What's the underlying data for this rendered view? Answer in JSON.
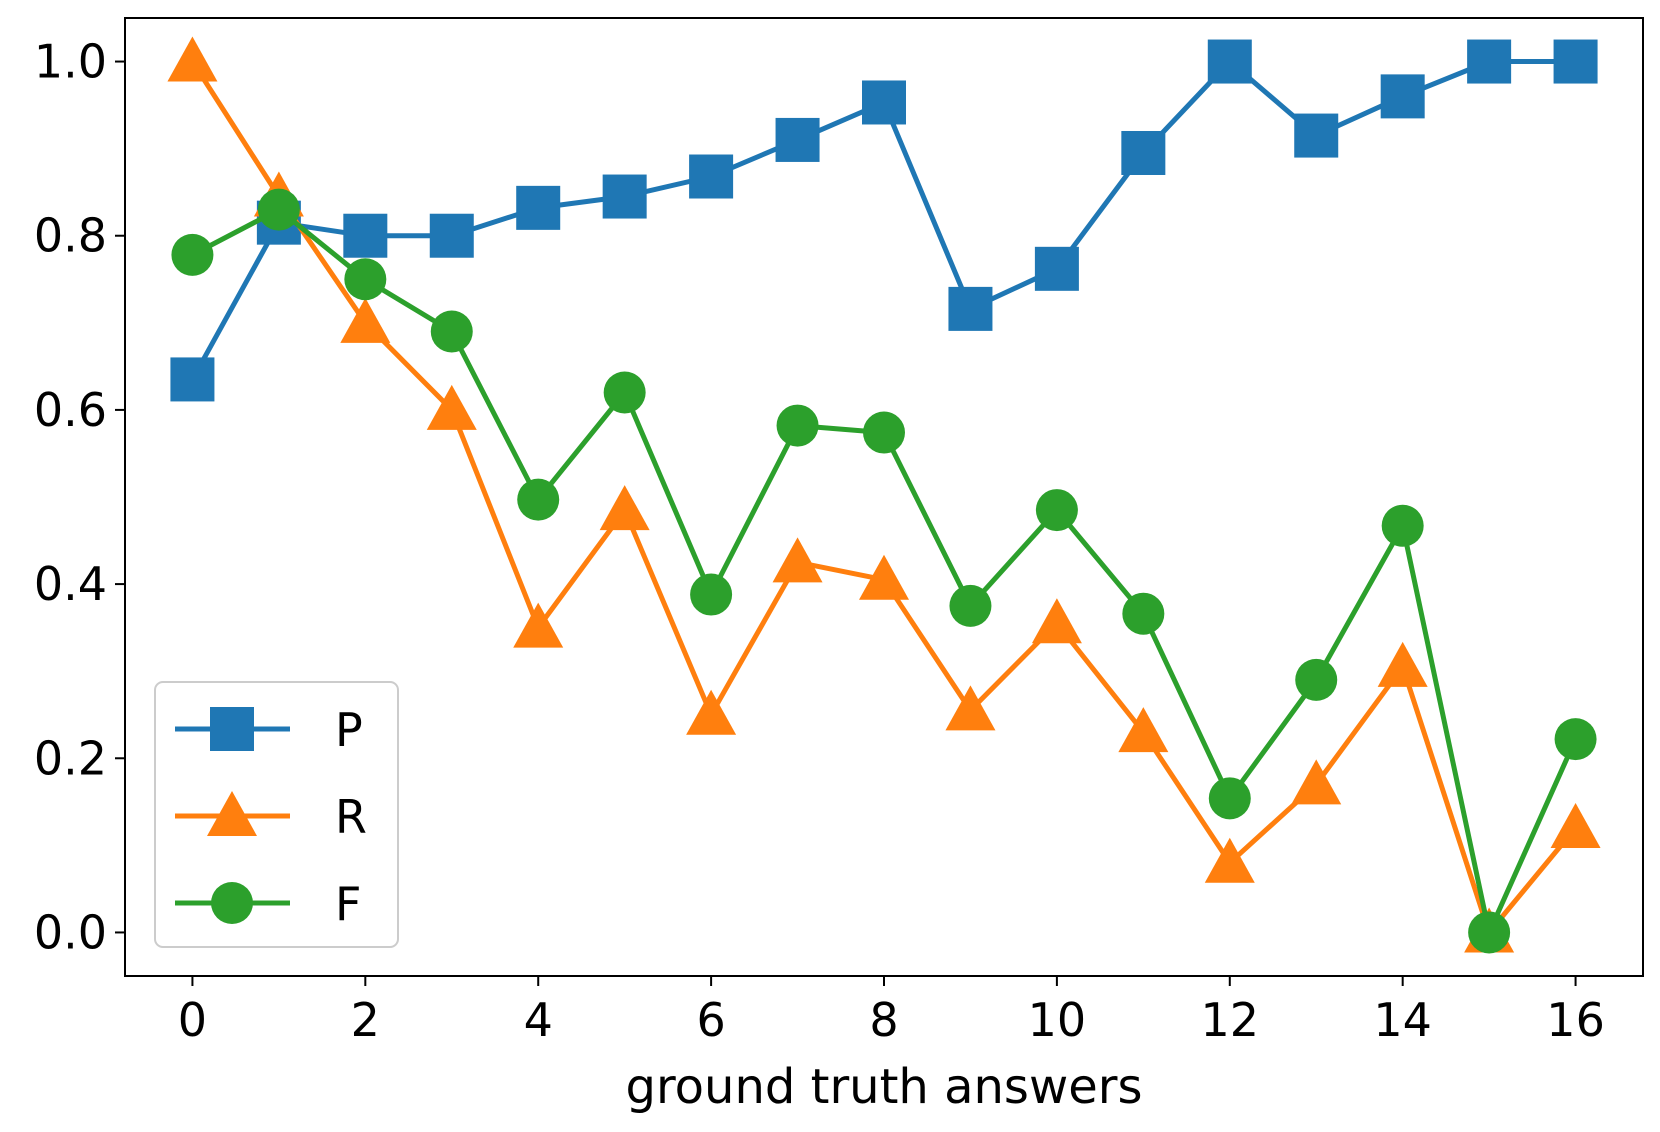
{
  "chart_data": {
    "type": "line",
    "title": "",
    "xlabel": "ground truth answers",
    "ylabel": "",
    "x": [
      0,
      1,
      2,
      3,
      4,
      5,
      6,
      7,
      8,
      9,
      10,
      11,
      12,
      13,
      14,
      15,
      16
    ],
    "xlim": [
      -0.78,
      16.78
    ],
    "ylim": [
      -0.05,
      1.05
    ],
    "xticks": [
      0,
      2,
      4,
      6,
      8,
      10,
      12,
      14,
      16
    ],
    "yticks": [
      0.0,
      0.2,
      0.4,
      0.6,
      0.8,
      1.0
    ],
    "xtick_labels": [
      "0",
      "2",
      "4",
      "6",
      "8",
      "10",
      "12",
      "14",
      "16"
    ],
    "ytick_labels": [
      "0.0",
      "0.2",
      "0.4",
      "0.6",
      "0.8",
      "1.0"
    ],
    "grid": false,
    "legend_position": "lower-left",
    "series": [
      {
        "name": "P",
        "color": "#1f77b4",
        "marker": "square",
        "values": [
          0.635,
          0.815,
          0.8,
          0.8,
          0.832,
          0.845,
          0.868,
          0.91,
          0.953,
          0.716,
          0.762,
          0.895,
          1.0,
          0.915,
          0.96,
          1.0,
          1.0
        ]
      },
      {
        "name": "R",
        "color": "#ff7f0e",
        "marker": "triangle",
        "values": [
          1.0,
          0.845,
          0.7,
          0.6,
          0.35,
          0.485,
          0.25,
          0.425,
          0.405,
          0.255,
          0.355,
          0.23,
          0.08,
          0.17,
          0.305,
          0.0,
          0.12
        ]
      },
      {
        "name": "F",
        "color": "#2ca02c",
        "marker": "circle",
        "values": [
          0.778,
          0.83,
          0.75,
          0.69,
          0.497,
          0.62,
          0.388,
          0.582,
          0.574,
          0.375,
          0.485,
          0.366,
          0.154,
          0.29,
          0.467,
          0.0,
          0.222
        ]
      }
    ]
  }
}
